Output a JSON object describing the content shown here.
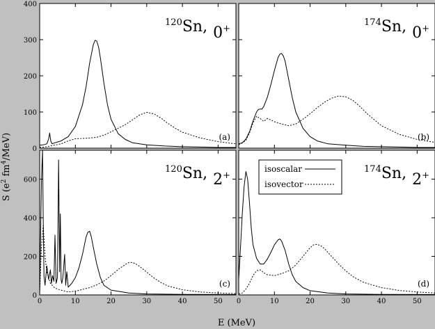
{
  "chart_data": {
    "type": "line",
    "xlabel": "E (MeV)",
    "ylabel": "S (e",
    "ylabel_sup1": "2",
    "ylabel_mid": " fm",
    "ylabel_sup2": "4",
    "ylabel_end": "/MeV)",
    "legend": {
      "placement": "top-left of panel (d)",
      "entries": [
        {
          "name": "isoscalar",
          "style": "solid"
        },
        {
          "name": "isovector",
          "style": "dashed"
        }
      ]
    },
    "panels": [
      {
        "id": "a",
        "letter": "(a)",
        "title_mass": "120",
        "title_elem": "Sn,",
        "title_mult": "0",
        "title_parity": "+",
        "xlim": [
          0,
          55
        ],
        "ylim": [
          0,
          400
        ],
        "x_ticks": [],
        "y_ticks": [
          "0",
          "100",
          "200",
          "300",
          "400"
        ],
        "series": [
          {
            "name": "isoscalar",
            "style": "solid",
            "x": [
              0,
              1,
              2,
              2.5,
              2.8,
              3.1,
              3.5,
              4,
              6,
              8,
              10,
              12,
              13,
              14,
              15,
              15.5,
              16,
              16.5,
              17,
              18,
              19,
              20,
              22,
              24,
              26,
              30,
              35,
              40,
              45,
              50,
              55
            ],
            "y": [
              8,
              9,
              12,
              25,
              42,
              20,
              12,
              14,
              20,
              32,
              60,
              120,
              170,
              235,
              285,
              298,
              296,
              280,
              250,
              180,
              120,
              80,
              40,
              24,
              15,
              9,
              6,
              4,
              3,
              2,
              2
            ]
          },
          {
            "name": "isovector",
            "style": "dashed",
            "x": [
              0,
              2,
              4,
              6,
              8,
              10,
              12,
              14,
              16,
              18,
              20,
              22,
              24,
              26,
              28,
              30,
              32,
              34,
              36,
              38,
              40,
              45,
              50,
              55
            ],
            "y": [
              2,
              4,
              8,
              12,
              20,
              26,
              27,
              28,
              30,
              36,
              45,
              55,
              65,
              78,
              92,
              99,
              95,
              83,
              68,
              55,
              44,
              28,
              18,
              12
            ]
          }
        ]
      },
      {
        "id": "b",
        "letter": "(b)",
        "title_mass": "174",
        "title_elem": "Sn,",
        "title_mult": "0",
        "title_parity": "+",
        "xlim": [
          0,
          55
        ],
        "ylim": [
          0,
          400
        ],
        "x_ticks": [],
        "y_ticks": [],
        "series": [
          {
            "name": "isoscalar",
            "style": "solid",
            "x": [
              0,
              1,
              2,
              3,
              4,
              5,
              5.5,
              6,
              6.5,
              7,
              8,
              9,
              10,
              11,
              11.5,
              12,
              12.5,
              13,
              14,
              15,
              16,
              18,
              20,
              22,
              25,
              30,
              35,
              40,
              45,
              50,
              55
            ],
            "y": [
              12,
              15,
              25,
              45,
              75,
              100,
              107,
              108,
              108,
              115,
              140,
              175,
              215,
              250,
              260,
              262,
              255,
              240,
              190,
              140,
              100,
              55,
              32,
              20,
              12,
              8,
              5,
              4,
              3,
              2,
              2
            ]
          },
          {
            "name": "isovector",
            "style": "dashed",
            "x": [
              0,
              1,
              2,
              3,
              4,
              5,
              6,
              7,
              8,
              9,
              10,
              12,
              14,
              16,
              18,
              20,
              22,
              24,
              26,
              28,
              30,
              32,
              34,
              36,
              40,
              45,
              50,
              55
            ],
            "y": [
              10,
              14,
              22,
              42,
              70,
              88,
              82,
              74,
              82,
              78,
              73,
              67,
              62,
              67,
              80,
              95,
              112,
              127,
              138,
              144,
              142,
              132,
              115,
              95,
              62,
              38,
              24,
              16
            ]
          }
        ]
      },
      {
        "id": "c",
        "letter": "(c)",
        "title_mass": "120",
        "title_elem": "Sn,",
        "title_mult": "2",
        "title_parity": "+",
        "xlim": [
          0,
          55
        ],
        "ylim": [
          0,
          750
        ],
        "x_ticks": [
          "0",
          "10",
          "20",
          "30",
          "40",
          "50"
        ],
        "y_ticks": [
          "0",
          "200",
          "400",
          "600"
        ],
        "series": [
          {
            "name": "isoscalar",
            "style": "solid",
            "x": [
              0,
              0.5,
              0.8,
              1,
              1.2,
              1.5,
              2,
              2.5,
              3,
              3.3,
              3.6,
              4,
              4.3,
              4.6,
              5,
              5.3,
              5.6,
              5.8,
              6,
              6.2,
              6.5,
              7,
              7.3,
              7.6,
              8,
              9,
              10,
              11,
              12,
              13,
              13.5,
              14,
              14.5,
              15,
              16,
              17,
              18,
              20,
              25,
              30,
              40,
              55
            ],
            "y": [
              0,
              600,
              750,
              400,
              100,
              50,
              150,
              80,
              130,
              60,
              100,
              70,
              310,
              60,
              90,
              700,
              120,
              420,
              80,
              60,
              90,
              210,
              50,
              120,
              40,
              60,
              90,
              140,
              210,
              300,
              325,
              330,
              300,
              250,
              160,
              90,
              50,
              25,
              10,
              5,
              3,
              2
            ]
          },
          {
            "name": "isovector",
            "style": "dashed",
            "x": [
              0,
              0.5,
              1,
              1.5,
              2,
              3,
              4,
              5,
              6,
              7,
              8,
              10,
              12,
              14,
              16,
              18,
              20,
              22,
              24,
              25,
              26,
              27,
              28,
              30,
              32,
              34,
              36,
              40,
              45,
              50,
              55
            ],
            "y": [
              10,
              250,
              360,
              200,
              120,
              60,
              40,
              30,
              25,
              20,
              15,
              20,
              28,
              38,
              52,
              72,
              100,
              132,
              158,
              168,
              168,
              160,
              148,
              118,
              88,
              64,
              46,
              27,
              15,
              10,
              7
            ]
          }
        ]
      },
      {
        "id": "d",
        "letter": "(d)",
        "title_mass": "174",
        "title_elem": "Sn,",
        "title_mult": "2",
        "title_parity": "+",
        "xlim": [
          0,
          55
        ],
        "ylim": [
          0,
          750
        ],
        "x_ticks": [
          "0",
          "10",
          "20",
          "30",
          "40",
          "50"
        ],
        "y_ticks": [],
        "series": [
          {
            "name": "isoscalar",
            "style": "solid",
            "x": [
              0,
              0.5,
              1,
              1.5,
              2,
              2.5,
              3,
              3.5,
              4,
              5,
              6,
              7,
              8,
              9,
              10,
              11,
              11.5,
              12,
              13,
              14,
              15,
              16,
              18,
              20,
              25,
              30,
              40,
              55
            ],
            "y": [
              80,
              250,
              420,
              560,
              640,
              600,
              480,
              350,
              260,
              190,
              160,
              160,
              185,
              220,
              260,
              285,
              290,
              280,
              230,
              160,
              105,
              70,
              38,
              22,
              10,
              5,
              3,
              2
            ]
          },
          {
            "name": "isovector",
            "style": "dashed",
            "x": [
              0,
              1,
              2,
              3,
              4,
              5,
              6,
              7,
              8,
              10,
              12,
              14,
              16,
              18,
              20,
              21,
              22,
              23,
              24,
              26,
              28,
              30,
              32,
              35,
              40,
              45,
              50,
              55
            ],
            "y": [
              5,
              10,
              30,
              60,
              100,
              125,
              130,
              115,
              105,
              100,
              110,
              125,
              155,
              200,
              245,
              260,
              262,
              255,
              240,
              200,
              160,
              125,
              95,
              65,
              38,
              23,
              15,
              10
            ]
          }
        ]
      }
    ]
  }
}
